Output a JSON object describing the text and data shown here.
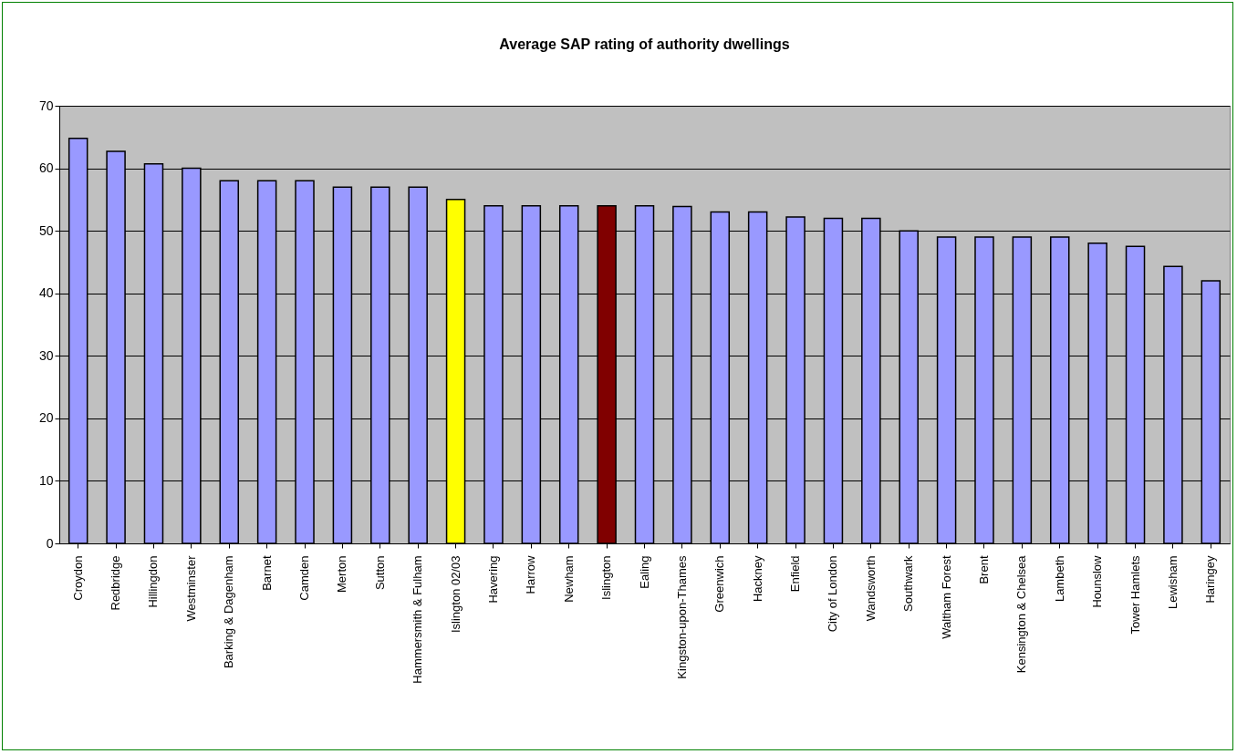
{
  "chart_data": {
    "type": "bar",
    "title": "Average SAP rating of authority dwellings",
    "categories": [
      "Croydon",
      "Redbridge",
      "Hillingdon",
      "Westminster",
      "Barking & Dagenham",
      "Barnet",
      "Camden",
      "Merton",
      "Sutton",
      "Hammersmith & Fulham",
      "Islington 02/03",
      "Havering",
      "Harrow",
      "Newham",
      "Islington",
      "Ealing",
      "Kingston-upon-Thames",
      "Greenwich",
      "Hackney",
      "Enfield",
      "City of London",
      "Wandsworth",
      "Southwark",
      "Waltham Forest",
      "Brent",
      "Kensington & Chelsea",
      "Lambeth",
      "Hounslow",
      "Tower Hamlets",
      "Lewisham",
      "Haringey"
    ],
    "values": [
      64.8,
      62.7,
      60.7,
      60,
      58,
      58,
      58,
      57,
      57,
      57,
      55,
      54,
      54,
      54,
      54,
      54,
      53.9,
      53,
      53,
      52.2,
      52,
      52,
      50,
      49,
      49,
      49,
      49,
      48,
      47.5,
      44.3,
      42
    ],
    "colors": [
      "#9999ff",
      "#9999ff",
      "#9999ff",
      "#9999ff",
      "#9999ff",
      "#9999ff",
      "#9999ff",
      "#9999ff",
      "#9999ff",
      "#9999ff",
      "#ffff00",
      "#9999ff",
      "#9999ff",
      "#9999ff",
      "#800000",
      "#9999ff",
      "#9999ff",
      "#9999ff",
      "#9999ff",
      "#9999ff",
      "#9999ff",
      "#9999ff",
      "#9999ff",
      "#9999ff",
      "#9999ff",
      "#9999ff",
      "#9999ff",
      "#9999ff",
      "#9999ff",
      "#9999ff",
      "#9999ff"
    ],
    "ylim": [
      0,
      70
    ],
    "yticks": [
      0,
      10,
      20,
      30,
      40,
      50,
      60,
      70
    ],
    "grid": "y"
  }
}
